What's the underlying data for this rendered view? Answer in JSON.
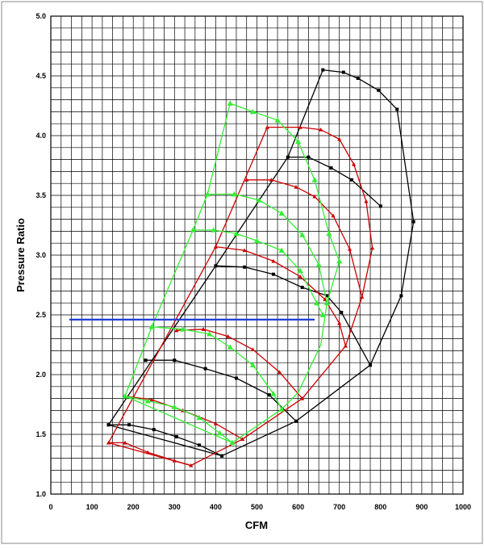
{
  "chart_data": {
    "type": "line",
    "title": "",
    "xlabel": "CFM",
    "ylabel": "Pressure Ratio",
    "xlim": [
      0,
      1000
    ],
    "ylim": [
      1.0,
      5.0
    ],
    "x_ticks": [
      0,
      100,
      200,
      300,
      400,
      500,
      600,
      700,
      800,
      900,
      1000
    ],
    "x_tick_labels": [
      "0",
      "100",
      "200",
      "300",
      "400",
      "500",
      "600",
      "700",
      "800",
      "900",
      "1000"
    ],
    "y_ticks": [
      1.0,
      1.5,
      2.0,
      2.5,
      3.0,
      3.5,
      4.0,
      4.5,
      5.0
    ],
    "y_tick_labels": [
      "1.0",
      "1.5",
      "2.0",
      "2.5",
      "3.0",
      "3.5",
      "4.0",
      "4.5",
      "5.0"
    ],
    "grid": true,
    "legend": "none",
    "colors": {
      "black": "#000000",
      "red": "#cc0000",
      "green": "#33ee33",
      "blue": "#1f3fd6",
      "grid": "#000000"
    },
    "series": [
      {
        "color": "black",
        "marker": "square",
        "points": [
          [
            140,
            1.58
          ],
          [
            190,
            1.58
          ],
          [
            250,
            1.54
          ],
          [
            305,
            1.48
          ],
          [
            360,
            1.41
          ],
          [
            415,
            1.32
          ]
        ]
      },
      {
        "color": "black",
        "marker": "square",
        "points": [
          [
            230,
            2.12
          ],
          [
            300,
            2.12
          ],
          [
            375,
            2.05
          ],
          [
            450,
            1.97
          ],
          [
            530,
            1.83
          ],
          [
            595,
            1.61
          ]
        ]
      },
      {
        "color": "black",
        "marker": "square",
        "points": [
          [
            400,
            2.91
          ],
          [
            470,
            2.9
          ],
          [
            540,
            2.84
          ],
          [
            610,
            2.73
          ],
          [
            670,
            2.66
          ],
          [
            705,
            2.52
          ],
          [
            775,
            2.08
          ]
        ]
      },
      {
        "color": "black",
        "marker": "square",
        "points": [
          [
            575,
            3.82
          ],
          [
            625,
            3.82
          ],
          [
            680,
            3.73
          ],
          [
            730,
            3.63
          ],
          [
            800,
            3.41
          ]
        ]
      },
      {
        "color": "black",
        "marker": "square",
        "points": [
          [
            660,
            4.55
          ],
          [
            710,
            4.53
          ],
          [
            745,
            4.48
          ],
          [
            795,
            4.38
          ],
          [
            840,
            4.22
          ],
          [
            880,
            3.28
          ],
          [
            850,
            2.66
          ],
          [
            775,
            2.08
          ],
          [
            595,
            1.61
          ],
          [
            415,
            1.32
          ],
          [
            140,
            1.58
          ]
        ]
      },
      {
        "color": "black",
        "marker": "none",
        "points": [
          [
            140,
            1.58
          ],
          [
            400,
            2.91
          ],
          [
            575,
            3.82
          ],
          [
            660,
            4.55
          ]
        ]
      },
      {
        "color": "red",
        "marker": "triangle",
        "points": [
          [
            140,
            1.43
          ],
          [
            180,
            1.43
          ],
          [
            235,
            1.35
          ],
          [
            300,
            1.28
          ],
          [
            340,
            1.24
          ]
        ]
      },
      {
        "color": "red",
        "marker": "triangle",
        "points": [
          [
            180,
            1.82
          ],
          [
            245,
            1.79
          ],
          [
            320,
            1.7
          ],
          [
            400,
            1.59
          ],
          [
            465,
            1.46
          ]
        ]
      },
      {
        "color": "red",
        "marker": "triangle",
        "points": [
          [
            305,
            2.37
          ],
          [
            370,
            2.38
          ],
          [
            430,
            2.32
          ],
          [
            490,
            2.21
          ],
          [
            555,
            2.02
          ],
          [
            610,
            1.8
          ]
        ]
      },
      {
        "color": "red",
        "marker": "triangle",
        "points": [
          [
            400,
            3.07
          ],
          [
            470,
            3.04
          ],
          [
            540,
            2.95
          ],
          [
            605,
            2.82
          ],
          [
            665,
            2.63
          ],
          [
            700,
            2.43
          ],
          [
            715,
            2.24
          ]
        ]
      },
      {
        "color": "red",
        "marker": "triangle",
        "points": [
          [
            475,
            3.63
          ],
          [
            535,
            3.63
          ],
          [
            595,
            3.57
          ],
          [
            640,
            3.49
          ],
          [
            685,
            3.33
          ],
          [
            725,
            3.05
          ],
          [
            755,
            2.65
          ]
        ]
      },
      {
        "color": "red",
        "marker": "triangle",
        "points": [
          [
            525,
            4.07
          ],
          [
            605,
            4.07
          ],
          [
            655,
            4.05
          ],
          [
            700,
            3.97
          ],
          [
            735,
            3.76
          ],
          [
            765,
            3.45
          ],
          [
            780,
            3.06
          ]
        ]
      },
      {
        "color": "red",
        "marker": "none",
        "points": [
          [
            780,
            3.06
          ],
          [
            755,
            2.65
          ],
          [
            715,
            2.24
          ],
          [
            610,
            1.8
          ],
          [
            465,
            1.46
          ],
          [
            340,
            1.24
          ],
          [
            140,
            1.43
          ]
        ]
      },
      {
        "color": "red",
        "marker": "none",
        "points": [
          [
            140,
            1.43
          ],
          [
            400,
            3.07
          ],
          [
            525,
            4.07
          ]
        ]
      },
      {
        "color": "green",
        "marker": "triangle",
        "points": [
          [
            180,
            1.82
          ],
          [
            235,
            1.78
          ],
          [
            300,
            1.73
          ],
          [
            360,
            1.64
          ],
          [
            410,
            1.51
          ],
          [
            440,
            1.43
          ]
        ]
      },
      {
        "color": "green",
        "marker": "triangle",
        "points": [
          [
            245,
            2.4
          ],
          [
            320,
            2.38
          ],
          [
            385,
            2.34
          ],
          [
            435,
            2.23
          ],
          [
            490,
            2.08
          ],
          [
            540,
            1.84
          ],
          [
            560,
            1.71
          ]
        ]
      },
      {
        "color": "green",
        "marker": "triangle",
        "points": [
          [
            345,
            3.21
          ],
          [
            395,
            3.21
          ],
          [
            450,
            3.18
          ],
          [
            500,
            3.12
          ],
          [
            560,
            3.04
          ],
          [
            605,
            2.87
          ],
          [
            645,
            2.6
          ],
          [
            660,
            2.5
          ]
        ]
      },
      {
        "color": "green",
        "marker": "triangle",
        "points": [
          [
            380,
            3.51
          ],
          [
            445,
            3.51
          ],
          [
            505,
            3.46
          ],
          [
            560,
            3.35
          ],
          [
            610,
            3.17
          ],
          [
            650,
            2.92
          ],
          [
            670,
            2.6
          ]
        ]
      },
      {
        "color": "green",
        "marker": "triangle",
        "points": [
          [
            435,
            4.27
          ],
          [
            490,
            4.2
          ],
          [
            550,
            4.13
          ],
          [
            600,
            3.95
          ],
          [
            640,
            3.63
          ],
          [
            675,
            3.18
          ],
          [
            700,
            2.95
          ]
        ]
      },
      {
        "color": "green",
        "marker": "none",
        "points": [
          [
            700,
            2.95
          ],
          [
            670,
            2.6
          ],
          [
            655,
            2.25
          ],
          [
            600,
            1.85
          ],
          [
            560,
            1.71
          ],
          [
            440,
            1.43
          ],
          [
            180,
            1.82
          ]
        ]
      },
      {
        "color": "green",
        "marker": "none",
        "points": [
          [
            180,
            1.82
          ],
          [
            245,
            2.4
          ],
          [
            345,
            3.21
          ],
          [
            380,
            3.51
          ],
          [
            435,
            4.27
          ]
        ]
      },
      {
        "color": "blue",
        "marker": "none",
        "points": [
          [
            45,
            2.46
          ],
          [
            640,
            2.46
          ]
        ]
      }
    ]
  }
}
